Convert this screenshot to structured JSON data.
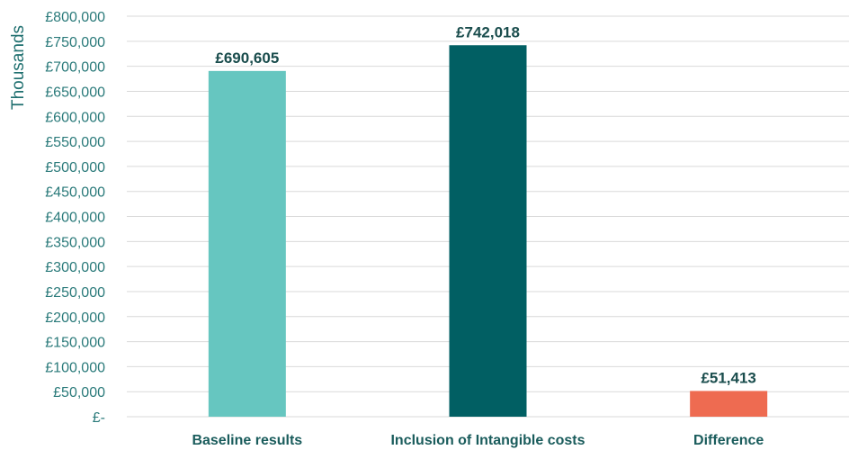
{
  "chart_data": {
    "type": "bar",
    "title": "",
    "xlabel": "",
    "ylabel": "Thousands",
    "categories": [
      "Baseline results",
      "Inclusion of Intangible costs",
      "Difference"
    ],
    "values": [
      690605,
      742018,
      51413
    ],
    "data_labels": [
      "£690,605",
      "£742,018",
      "£51,413"
    ],
    "bar_colors": [
      "#66c6c0",
      "#015f63",
      "#ee6b51"
    ],
    "ylim": [
      0,
      800000
    ],
    "y_ticks": [
      {
        "value": 0,
        "label": "£-"
      },
      {
        "value": 50000,
        "label": "£50,000"
      },
      {
        "value": 100000,
        "label": "£100,000"
      },
      {
        "value": 150000,
        "label": "£150,000"
      },
      {
        "value": 200000,
        "label": "£200,000"
      },
      {
        "value": 250000,
        "label": "£250,000"
      },
      {
        "value": 300000,
        "label": "£300,000"
      },
      {
        "value": 350000,
        "label": "£350,000"
      },
      {
        "value": 400000,
        "label": "£400,000"
      },
      {
        "value": 450000,
        "label": "£450,000"
      },
      {
        "value": 500000,
        "label": "£500,000"
      },
      {
        "value": 550000,
        "label": "£550,000"
      },
      {
        "value": 600000,
        "label": "£600,000"
      },
      {
        "value": 650000,
        "label": "£650,000"
      },
      {
        "value": 700000,
        "label": "£700,000"
      },
      {
        "value": 750000,
        "label": "£750,000"
      },
      {
        "value": 800000,
        "label": "£800,000"
      }
    ],
    "grid": true,
    "legend": "none"
  }
}
